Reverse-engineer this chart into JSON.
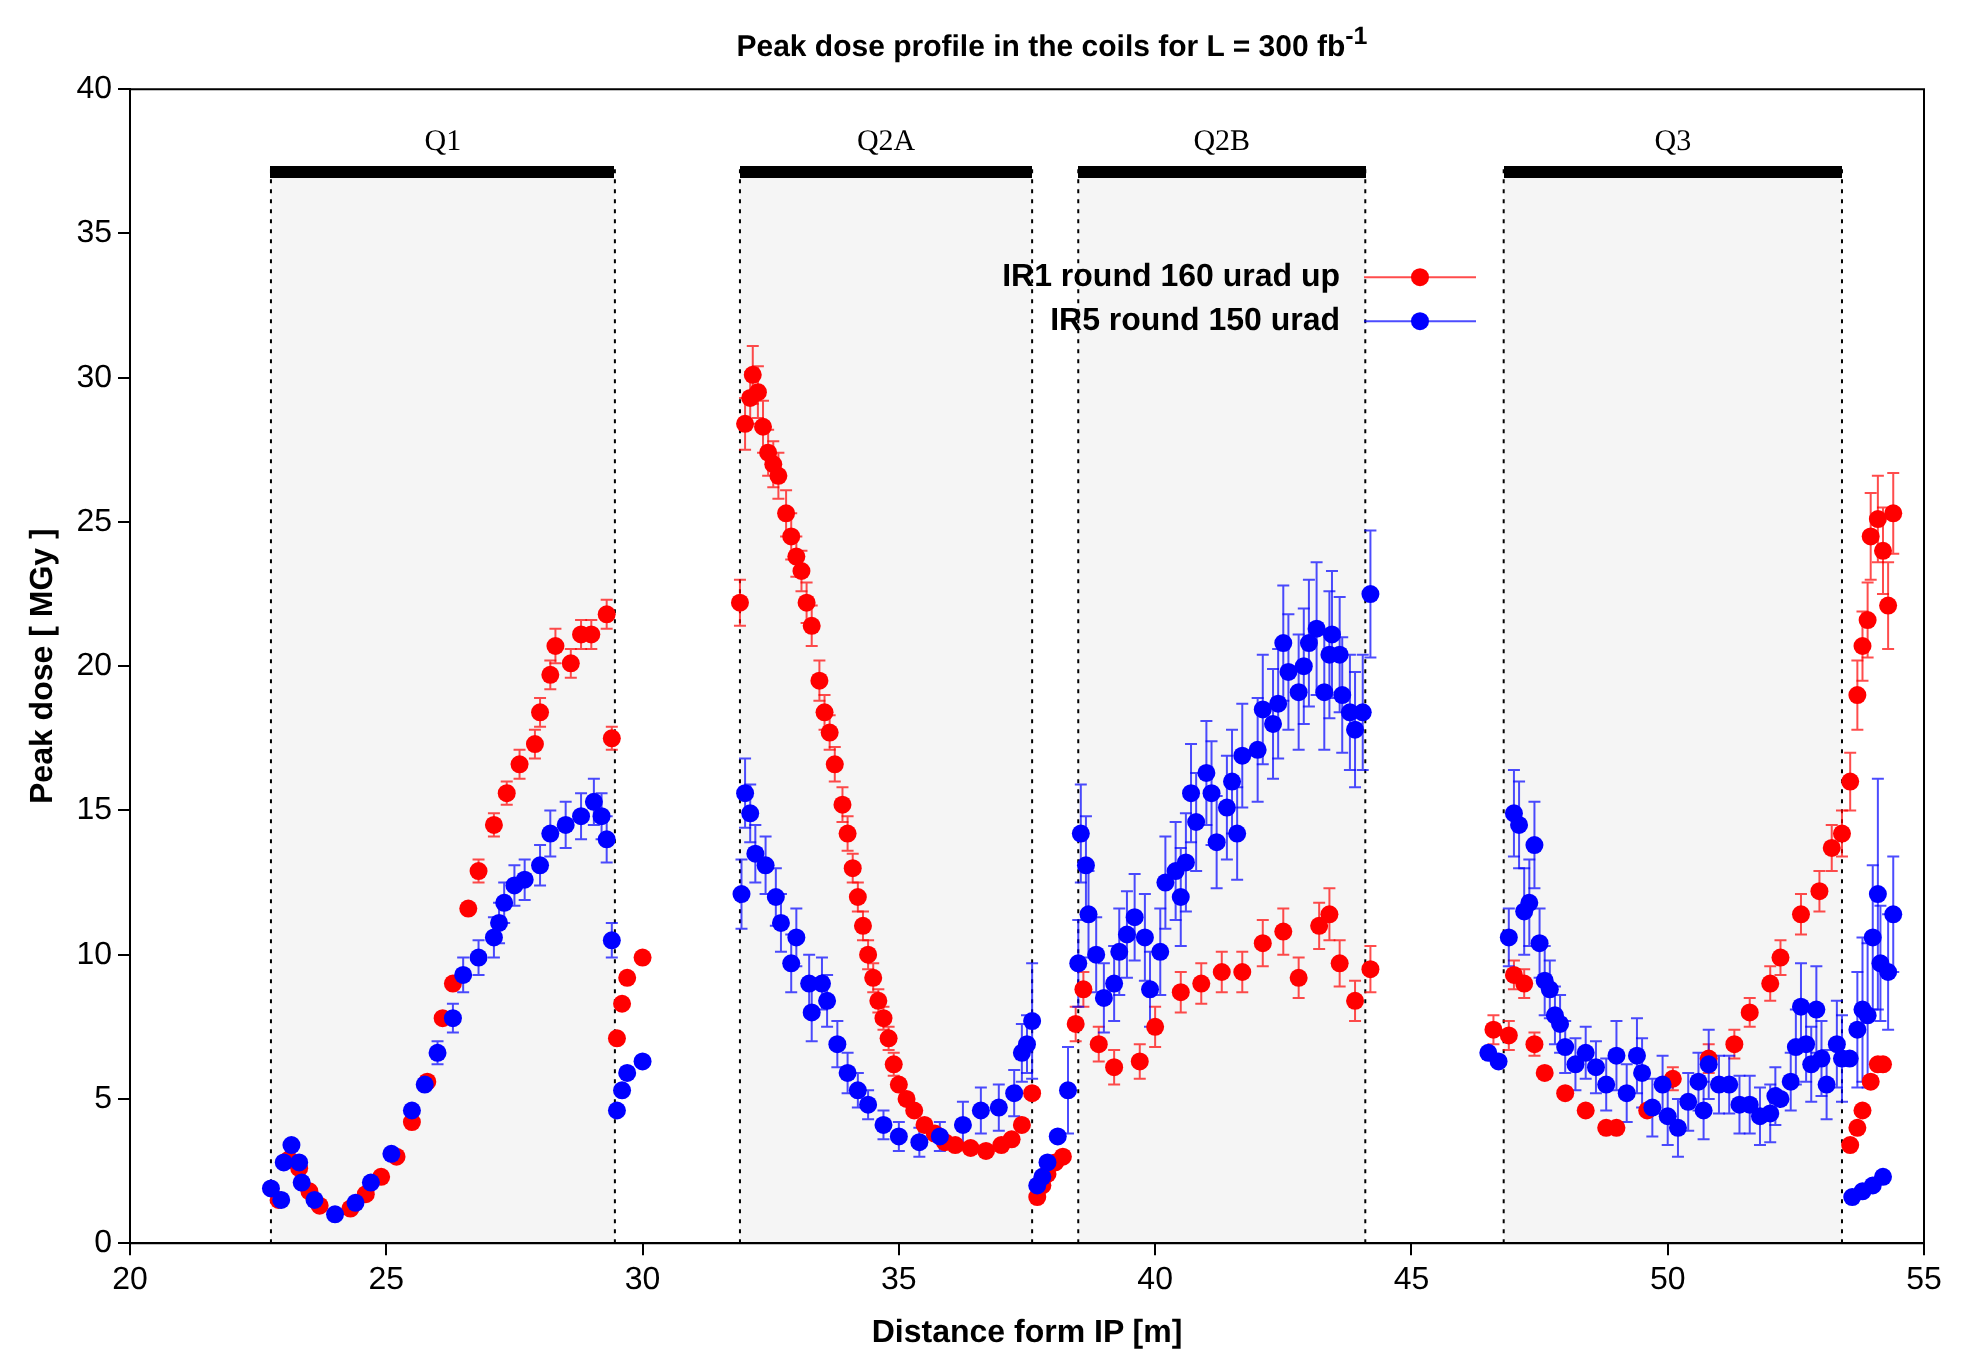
{
  "chart_data": {
    "type": "scatter",
    "title": "Peak dose profile in the coils for L = 300 fb$^{-1}$",
    "xlabel": "Distance form IP [m]",
    "ylabel": "Peak dose [ MGy ]",
    "xlim": [
      20,
      55
    ],
    "xticks": [
      20,
      25,
      30,
      35,
      40,
      45,
      50,
      55
    ],
    "ylim": [
      0,
      40
    ],
    "yticks": [
      0,
      5,
      10,
      15,
      20,
      25,
      30,
      35,
      40
    ],
    "marker": "circle",
    "legend": "top right",
    "bands": [
      {
        "axis": "x",
        "from": 22.75,
        "to": 29.46,
        "label": "Q1",
        "color": "#000000"
      },
      {
        "axis": "x",
        "from": 31.9,
        "to": 37.6,
        "label": "Q2A",
        "color": "#000000"
      },
      {
        "axis": "x",
        "from": 38.5,
        "to": 44.1,
        "label": "Q2B",
        "color": "#000000"
      },
      {
        "axis": "x",
        "from": 46.8,
        "to": 53.4,
        "label": "Q3",
        "color": "#000000"
      }
    ],
    "series": [
      {
        "name": "IR1 round 160 urad up",
        "color": "#ff0000",
        "x": [
          22.9,
          23.1,
          23.3,
          23.5,
          23.7,
          24.3,
          24.6,
          24.9,
          25.2,
          25.5,
          25.8,
          26.1,
          26.3,
          26.6,
          26.8,
          27.1,
          27.35,
          27.6,
          27.9,
          28.0,
          28.2,
          28.3,
          28.6,
          28.8,
          29.0,
          29.3,
          29.4,
          29.5,
          29.6,
          29.7,
          30.0,
          31.9,
          32.0,
          32.1,
          32.15,
          32.25,
          32.35,
          32.45,
          32.55,
          32.65,
          32.8,
          32.9,
          33.0,
          33.1,
          33.2,
          33.3,
          33.45,
          33.55,
          33.65,
          33.75,
          33.9,
          34.0,
          34.1,
          34.2,
          34.3,
          34.4,
          34.5,
          34.6,
          34.7,
          34.8,
          34.9,
          35.0,
          35.15,
          35.3,
          35.5,
          35.7,
          35.9,
          36.1,
          36.4,
          36.7,
          37.0,
          37.2,
          37.4,
          37.6,
          37.7,
          37.8,
          37.9,
          38.05,
          38.2,
          38.45,
          38.6,
          38.9,
          39.2,
          39.7,
          40.0,
          40.5,
          40.9,
          41.3,
          41.7,
          42.1,
          42.5,
          42.8,
          43.2,
          43.4,
          43.6,
          43.9,
          44.2,
          46.6,
          46.9,
          47.0,
          47.2,
          47.4,
          47.6,
          48.0,
          48.4,
          48.8,
          49.0,
          49.6,
          50.1,
          50.8,
          51.3,
          51.6,
          52.0,
          52.2,
          52.6,
          52.96,
          53.2,
          53.4,
          53.56,
          53.7,
          53.8,
          53.9,
          53.96,
          54.1,
          54.2,
          54.3,
          54.4,
          53.56,
          53.7,
          53.8,
          53.96,
          54.1,
          54.2
        ],
        "values": [
          1.5,
          2.9,
          2.6,
          1.8,
          1.3,
          1.2,
          1.7,
          2.3,
          3.0,
          4.2,
          5.6,
          7.8,
          9.0,
          11.6,
          12.9,
          14.5,
          15.6,
          16.6,
          17.3,
          18.4,
          19.7,
          20.7,
          20.1,
          21.1,
          21.1,
          21.8,
          17.5,
          7.1,
          8.3,
          9.2,
          9.9,
          22.2,
          28.4,
          29.3,
          30.1,
          29.5,
          28.3,
          27.4,
          27.0,
          26.6,
          25.3,
          24.5,
          23.8,
          23.3,
          22.2,
          21.4,
          19.5,
          18.4,
          17.7,
          16.6,
          15.2,
          14.2,
          13.0,
          12.0,
          11.0,
          10.0,
          9.2,
          8.4,
          7.8,
          7.1,
          6.2,
          5.5,
          5.0,
          4.6,
          4.1,
          3.8,
          3.5,
          3.4,
          3.3,
          3.2,
          3.4,
          3.6,
          4.1,
          5.2,
          1.6,
          2.0,
          2.4,
          2.8,
          3.0,
          7.6,
          8.8,
          6.9,
          6.1,
          6.3,
          7.5,
          8.7,
          9.0,
          9.4,
          9.4,
          10.4,
          10.8,
          9.2,
          11.0,
          11.4,
          9.7,
          8.4,
          9.5,
          7.4,
          7.2,
          9.3,
          9.0,
          6.9,
          5.9,
          5.2,
          4.6,
          4.0,
          4.0,
          4.6,
          5.7,
          6.4,
          6.9,
          8.0,
          9.0,
          9.9,
          11.4,
          12.2,
          13.7,
          14.2,
          16.0,
          19.0,
          20.7,
          21.6,
          24.5,
          25.1,
          24.0,
          22.1,
          25.3,
          3.4,
          4.0,
          4.6,
          5.6,
          6.2,
          6.2
        ],
        "errors": [
          null,
          null,
          null,
          null,
          null,
          null,
          null,
          null,
          null,
          null,
          null,
          null,
          null,
          null,
          0.4,
          0.4,
          0.4,
          0.5,
          0.5,
          0.5,
          0.5,
          0.6,
          0.5,
          0.5,
          0.5,
          0.5,
          0.4,
          null,
          null,
          null,
          null,
          0.8,
          0.9,
          0.9,
          1.0,
          0.9,
          0.9,
          0.8,
          0.8,
          0.8,
          0.8,
          0.8,
          0.7,
          0.7,
          0.7,
          0.7,
          0.7,
          0.6,
          0.6,
          0.6,
          0.6,
          0.6,
          0.5,
          0.5,
          0.5,
          0.5,
          0.5,
          0.4,
          0.4,
          0.4,
          0.4,
          null,
          null,
          null,
          null,
          null,
          null,
          null,
          null,
          null,
          null,
          null,
          null,
          null,
          null,
          null,
          null,
          null,
          null,
          0.6,
          0.6,
          0.6,
          0.6,
          0.6,
          0.7,
          0.7,
          0.7,
          0.7,
          0.7,
          0.8,
          0.8,
          0.7,
          0.8,
          0.9,
          0.8,
          0.7,
          0.8,
          0.5,
          0.5,
          0.5,
          0.5,
          0.4,
          null,
          null,
          null,
          null,
          null,
          null,
          0.4,
          0.5,
          0.5,
          0.5,
          0.6,
          0.6,
          0.7,
          0.7,
          0.8,
          0.8,
          1.0,
          1.2,
          1.2,
          1.3,
          1.5,
          1.5,
          1.5,
          1.5,
          1.4,
          null,
          null,
          null,
          null,
          null,
          null
        ]
      },
      {
        "name": "IR5 round 150 urad",
        "color": "#0000ff",
        "x": [
          22.75,
          22.95,
          23.0,
          23.15,
          23.3,
          23.35,
          23.6,
          24.0,
          24.4,
          24.7,
          25.1,
          25.5,
          25.75,
          26.0,
          26.3,
          26.5,
          26.8,
          27.1,
          27.2,
          27.3,
          27.5,
          27.7,
          28.0,
          28.2,
          28.5,
          28.8,
          29.05,
          29.2,
          29.3,
          29.4,
          29.5,
          29.6,
          29.7,
          30.0,
          31.93,
          32.0,
          32.1,
          32.2,
          32.4,
          32.6,
          32.7,
          32.9,
          33.0,
          33.25,
          33.3,
          33.5,
          33.6,
          33.8,
          34.0,
          34.2,
          34.4,
          34.7,
          35.0,
          35.4,
          35.8,
          36.25,
          36.6,
          36.95,
          37.25,
          37.4,
          37.5,
          37.6,
          37.7,
          37.8,
          37.9,
          38.1,
          38.3,
          38.5,
          38.55,
          38.65,
          38.7,
          38.85,
          39.0,
          39.2,
          39.3,
          39.45,
          39.6,
          39.8,
          39.9,
          40.1,
          40.2,
          40.4,
          40.5,
          40.6,
          40.7,
          40.8,
          41.0,
          41.1,
          41.2,
          41.4,
          41.5,
          41.6,
          41.7,
          42.0,
          42.1,
          42.3,
          42.4,
          42.5,
          42.6,
          42.8,
          42.9,
          43.0,
          43.15,
          43.3,
          43.4,
          43.45,
          43.6,
          43.65,
          43.8,
          43.9,
          44.05,
          44.2,
          46.5,
          46.7,
          46.9,
          47.0,
          47.1,
          47.2,
          47.3,
          47.4,
          47.5,
          47.6,
          47.7,
          47.8,
          47.9,
          48.0,
          48.2,
          48.4,
          48.6,
          48.8,
          49.0,
          49.2,
          49.4,
          49.5,
          49.7,
          49.9,
          50.0,
          50.2,
          50.4,
          50.6,
          50.7,
          50.8,
          51.0,
          51.2,
          51.4,
          51.6,
          51.8,
          52.0,
          52.1,
          52.2,
          52.4,
          52.5,
          52.6,
          52.7,
          52.8,
          52.9,
          53.0,
          53.1,
          53.3,
          53.4,
          53.55,
          53.7,
          53.8,
          53.9,
          54.0,
          54.1,
          54.15,
          54.3,
          54.4,
          53.6,
          53.8,
          54.0,
          54.2
        ],
        "values": [
          1.9,
          1.5,
          2.8,
          3.4,
          2.8,
          2.1,
          1.5,
          1.0,
          1.4,
          2.1,
          3.1,
          4.6,
          5.5,
          6.6,
          7.8,
          9.3,
          9.9,
          10.6,
          11.1,
          11.8,
          12.4,
          12.6,
          13.1,
          14.2,
          14.5,
          14.8,
          15.3,
          14.8,
          14.0,
          10.5,
          4.6,
          5.3,
          5.9,
          6.3,
          12.1,
          15.6,
          14.9,
          13.5,
          13.1,
          12.0,
          11.1,
          9.7,
          10.6,
          9.0,
          8.0,
          9.0,
          8.4,
          6.9,
          5.9,
          5.3,
          4.8,
          4.1,
          3.7,
          3.5,
          3.7,
          4.1,
          4.6,
          4.7,
          5.2,
          6.6,
          6.9,
          7.7,
          2.0,
          2.3,
          2.8,
          3.7,
          5.3,
          9.7,
          14.2,
          13.1,
          11.4,
          10.0,
          8.5,
          9.0,
          10.1,
          10.7,
          11.3,
          10.6,
          8.8,
          10.1,
          12.5,
          12.9,
          12.0,
          13.2,
          15.6,
          14.6,
          16.3,
          15.6,
          13.9,
          15.1,
          16.0,
          14.2,
          16.9,
          17.1,
          18.5,
          18.0,
          18.7,
          20.8,
          19.8,
          19.1,
          20.0,
          20.8,
          21.3,
          19.1,
          20.4,
          21.1,
          20.4,
          19.0,
          18.4,
          17.8,
          18.4,
          22.5,
          6.6,
          6.3,
          10.6,
          14.9,
          14.5,
          11.5,
          11.8,
          13.8,
          10.4,
          9.1,
          8.8,
          7.9,
          7.6,
          6.8,
          6.2,
          6.6,
          6.1,
          5.5,
          6.5,
          5.2,
          6.5,
          5.9,
          4.7,
          5.5,
          4.4,
          4.0,
          4.9,
          5.6,
          4.6,
          6.2,
          5.5,
          5.5,
          4.8,
          4.8,
          4.4,
          4.5,
          5.1,
          5.0,
          5.6,
          6.8,
          8.2,
          6.9,
          6.2,
          8.1,
          6.4,
          5.5,
          6.9,
          6.4,
          6.4,
          7.4,
          8.1,
          7.9,
          10.6,
          12.1,
          9.7,
          9.4,
          11.4,
          1.6,
          1.8,
          2.0,
          2.3
        ],
        "errors": [
          null,
          null,
          null,
          null,
          null,
          null,
          null,
          null,
          null,
          null,
          null,
          null,
          null,
          0.4,
          0.5,
          0.6,
          0.6,
          0.7,
          0.7,
          0.7,
          0.7,
          0.7,
          0.7,
          0.8,
          0.8,
          0.8,
          0.8,
          0.8,
          0.8,
          0.6,
          null,
          null,
          null,
          null,
          1.2,
          1.2,
          1.0,
          1.0,
          1.0,
          1.0,
          1.0,
          1.0,
          1.0,
          1.0,
          1.0,
          0.9,
          0.9,
          0.8,
          0.7,
          0.6,
          0.5,
          0.5,
          0.5,
          0.5,
          0.5,
          0.8,
          0.8,
          0.8,
          0.8,
          1.0,
          1.0,
          2.0,
          null,
          null,
          null,
          null,
          1.5,
          1.5,
          1.7,
          1.7,
          1.5,
          1.3,
          1.2,
          1.3,
          1.5,
          1.5,
          1.5,
          1.5,
          1.3,
          1.5,
          1.6,
          1.7,
          1.7,
          1.7,
          1.7,
          1.7,
          1.8,
          1.8,
          1.6,
          1.8,
          1.8,
          1.6,
          1.8,
          1.8,
          1.9,
          1.9,
          1.9,
          2.0,
          2.0,
          2.0,
          2.0,
          2.2,
          2.3,
          2.0,
          2.2,
          2.2,
          2.0,
          2.0,
          2.0,
          2.0,
          2.0,
          2.2,
          null,
          null,
          1.0,
          1.5,
          1.5,
          1.5,
          1.5,
          1.5,
          1.2,
          1.2,
          1.0,
          1.0,
          1.0,
          0.9,
          0.9,
          0.9,
          0.9,
          0.9,
          1.2,
          1.0,
          1.3,
          1.2,
          1.0,
          1.0,
          1.0,
          1.0,
          1.0,
          1.0,
          1.0,
          1.2,
          1.0,
          1.0,
          1.0,
          1.0,
          1.0,
          1.0,
          1.0,
          null,
          1.0,
          1.3,
          1.5,
          1.3,
          1.3,
          1.5,
          1.3,
          1.2,
          1.5,
          1.5,
          null,
          2.0,
          2.5,
          2.5,
          2.5,
          4.0,
          2.0,
          2.0,
          2.0,
          null,
          null,
          null,
          null
        ]
      }
    ]
  }
}
